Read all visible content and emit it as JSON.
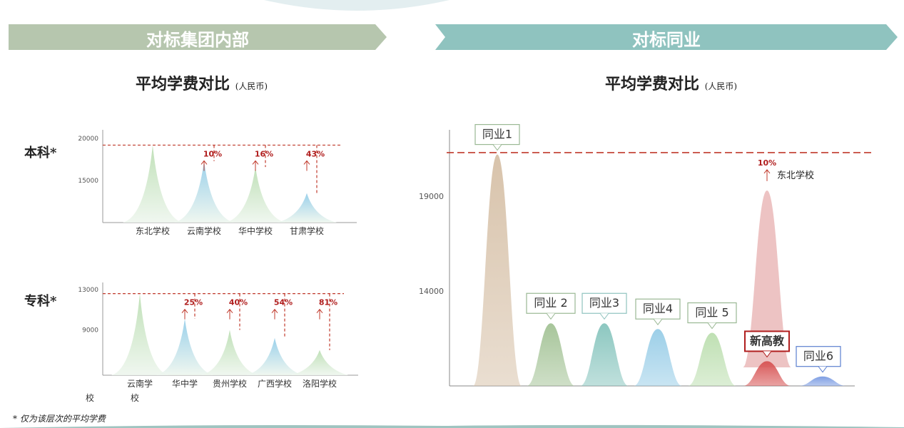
{
  "left_panel": {
    "banner": "对标集团内部",
    "title": "平均学费对比",
    "title_unit": "(人民币)",
    "colors": {
      "banner": "#b6c6ae",
      "dash": "#c0392b",
      "pct": "#b01e1e"
    }
  },
  "right_panel": {
    "banner": "对标同业",
    "title": "平均学费对比",
    "title_unit": "(人民币)",
    "colors": {
      "banner": "#8fc3bf",
      "dash": "#c0392b",
      "pct": "#b01e1e"
    }
  },
  "footnote": "* 仅为该层次的平均学费",
  "chart_data": [
    {
      "type": "area",
      "row_label": "本科*",
      "categories": [
        "东北学校",
        "云南学校",
        "华中学校",
        "甘肃学校"
      ],
      "values": [
        19200,
        17300,
        16600,
        13500
      ],
      "pct_labels": [
        "",
        "10%",
        "16%",
        "43%"
      ],
      "y_ticks": [
        20000,
        15000
      ],
      "ylim": [
        10000,
        20000
      ],
      "benchmark": 19200,
      "colors": [
        "#b9ddb0",
        "#8fcbe8",
        "#b9ddb0",
        "#8fcbe8"
      ]
    },
    {
      "type": "area",
      "row_label": "专科*",
      "categories": [
        "云南学\n校",
        "华中学\n校",
        "贵州学校",
        "广西学校",
        "洛阳学校"
      ],
      "values": [
        12600,
        10100,
        9000,
        8200,
        7000
      ],
      "pct_labels": [
        "",
        "25%",
        "40%",
        "54%",
        "81%"
      ],
      "y_ticks": [
        13000,
        9000
      ],
      "ylim": [
        4500,
        13000
      ],
      "benchmark": 12600,
      "colors": [
        "#b9ddb0",
        "#8fcbe8",
        "#b9ddb0",
        "#8fcbe8",
        "#b9ddb0"
      ]
    },
    {
      "type": "area",
      "categories": [
        "同业1",
        "同业 2",
        "同业3",
        "同业4",
        "同业 5",
        "新高教",
        "同业6"
      ],
      "values": [
        21200,
        12300,
        12300,
        12000,
        11800,
        10300,
        9500
      ],
      "y_ticks": [
        19000,
        14000
      ],
      "ylim": [
        9000,
        22500
      ],
      "benchmark": 21300,
      "annotation": {
        "index": 0,
        "pct": "10%",
        "target": "东北学校",
        "value": 19300
      },
      "colors": [
        "#d8c3ab",
        "#a7c59a",
        "#8cc7c0",
        "#9ccfe8",
        "#bfe0b3",
        "#d85858",
        "#7f9fe3"
      ],
      "box_colors": [
        "#9ab894",
        "#9ab894",
        "#8fc3bf",
        "#9ab894",
        "#9ab894",
        "#b01e1e",
        "#5b7fd0"
      ],
      "highlight": 5
    }
  ]
}
